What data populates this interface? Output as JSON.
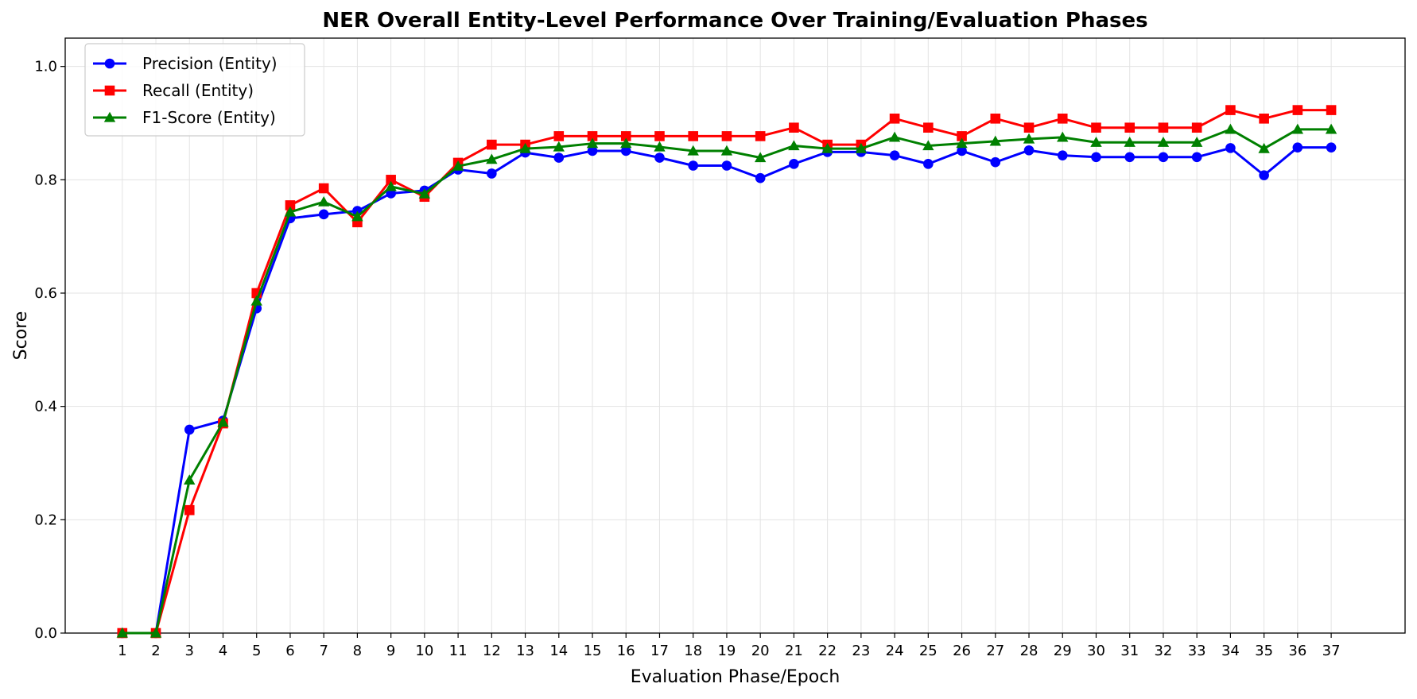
{
  "chart_data": {
    "type": "line",
    "title": "NER Overall Entity-Level Performance Over Training/Evaluation Phases",
    "xlabel": "Evaluation Phase/Epoch",
    "ylabel": "Score",
    "x": [
      1,
      2,
      3,
      4,
      5,
      6,
      7,
      8,
      9,
      10,
      11,
      12,
      13,
      14,
      15,
      16,
      17,
      18,
      19,
      20,
      21,
      22,
      23,
      24,
      25,
      26,
      27,
      28,
      29,
      30,
      31,
      32,
      33,
      34,
      35,
      36,
      37
    ],
    "xlim": [
      -0.7,
      39.2
    ],
    "ylim": [
      0.0,
      1.05
    ],
    "yticks": [
      0.0,
      0.2,
      0.4,
      0.6,
      0.8,
      1.0
    ],
    "ytick_labels": [
      "0.0",
      "0.2",
      "0.4",
      "0.6",
      "0.8",
      "1.0"
    ],
    "grid": true,
    "legend_position": "top-left",
    "series": [
      {
        "name": "Precision (Entity)",
        "color": "#0000ff",
        "marker": "circle",
        "values": [
          0.0,
          0.0,
          0.359,
          0.375,
          0.573,
          0.732,
          0.739,
          0.745,
          0.776,
          0.781,
          0.818,
          0.811,
          0.848,
          0.839,
          0.851,
          0.851,
          0.839,
          0.825,
          0.825,
          0.803,
          0.828,
          0.849,
          0.849,
          0.843,
          0.828,
          0.851,
          0.831,
          0.852,
          0.843,
          0.84,
          0.84,
          0.84,
          0.84,
          0.856,
          0.808,
          0.857,
          0.857
        ]
      },
      {
        "name": "Recall (Entity)",
        "color": "#ff0000",
        "marker": "square",
        "values": [
          0.0,
          0.0,
          0.217,
          0.37,
          0.6,
          0.755,
          0.785,
          0.725,
          0.8,
          0.77,
          0.83,
          0.862,
          0.862,
          0.877,
          0.877,
          0.877,
          0.877,
          0.877,
          0.877,
          0.877,
          0.892,
          0.862,
          0.862,
          0.908,
          0.892,
          0.877,
          0.908,
          0.892,
          0.908,
          0.892,
          0.892,
          0.892,
          0.892,
          0.923,
          0.908,
          0.923,
          0.923
        ]
      },
      {
        "name": "F1-Score (Entity)",
        "color": "#008000",
        "marker": "triangle",
        "values": [
          0.0,
          0.0,
          0.27,
          0.372,
          0.586,
          0.743,
          0.761,
          0.735,
          0.788,
          0.775,
          0.824,
          0.836,
          0.855,
          0.858,
          0.864,
          0.864,
          0.858,
          0.851,
          0.851,
          0.839,
          0.86,
          0.855,
          0.855,
          0.875,
          0.86,
          0.864,
          0.868,
          0.872,
          0.875,
          0.866,
          0.866,
          0.866,
          0.866,
          0.889,
          0.855,
          0.889,
          0.889
        ]
      }
    ]
  }
}
